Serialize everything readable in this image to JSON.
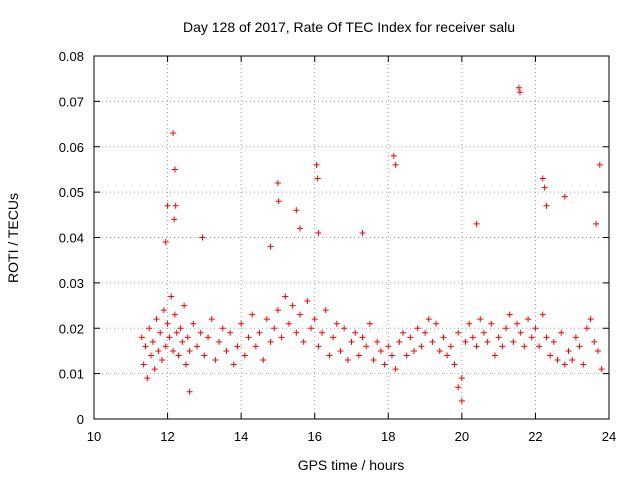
{
  "chart_data": {
    "type": "scatter",
    "title": "Day 128 of 2017, Rate Of TEC Index for receiver salu",
    "xlabel": "GPS time / hours",
    "ylabel": "ROTI / TECUs",
    "xlim": [
      10,
      24
    ],
    "ylim": [
      0,
      0.08
    ],
    "xticks": [
      10,
      12,
      14,
      16,
      18,
      20,
      22,
      24
    ],
    "xtick_labels": [
      "10",
      "12",
      "14",
      "16",
      "18",
      "20",
      "22",
      "24"
    ],
    "yticks": [
      0,
      0.01,
      0.02,
      0.03,
      0.04,
      0.05,
      0.06,
      0.07,
      0.08
    ],
    "ytick_labels": [
      "0",
      "0.01",
      "0.02",
      "0.03",
      "0.04",
      "0.05",
      "0.06",
      "0.07",
      "0.08"
    ],
    "grid": true,
    "marker": "+",
    "color": "#ff0000",
    "series": [
      {
        "name": "ROTI",
        "x": [
          11.3,
          11.35,
          11.4,
          11.45,
          11.5,
          11.55,
          11.6,
          11.65,
          11.7,
          11.75,
          11.8,
          11.85,
          11.9,
          11.95,
          12.0,
          12.05,
          12.1,
          12.15,
          12.2,
          12.25,
          12.3,
          12.35,
          12.4,
          12.45,
          12.5,
          12.55,
          12.6,
          12.7,
          12.8,
          12.9,
          13.0,
          13.1,
          13.2,
          13.3,
          13.4,
          13.5,
          13.6,
          13.7,
          13.8,
          13.9,
          14.0,
          14.1,
          14.2,
          14.3,
          14.4,
          14.5,
          14.6,
          14.7,
          14.8,
          14.9,
          15.0,
          15.1,
          15.2,
          15.3,
          15.4,
          15.5,
          15.6,
          15.7,
          15.8,
          15.9,
          16.0,
          16.1,
          16.2,
          16.3,
          16.4,
          16.5,
          16.6,
          16.7,
          16.8,
          16.9,
          17.0,
          17.1,
          17.2,
          17.3,
          17.4,
          17.5,
          17.6,
          17.7,
          17.8,
          17.9,
          18.0,
          18.1,
          18.2,
          18.3,
          18.4,
          18.5,
          18.6,
          18.7,
          18.8,
          18.9,
          19.0,
          19.1,
          19.2,
          19.3,
          19.4,
          19.5,
          19.6,
          19.7,
          19.8,
          19.9,
          20.0,
          20.1,
          20.2,
          20.3,
          20.4,
          20.5,
          20.6,
          20.7,
          20.8,
          20.9,
          21.0,
          21.1,
          21.2,
          21.3,
          21.4,
          21.5,
          21.6,
          21.7,
          21.8,
          21.9,
          22.0,
          22.1,
          22.2,
          22.3,
          22.4,
          22.5,
          22.6,
          22.7,
          22.8,
          22.9,
          23.0,
          23.1,
          23.2,
          23.3,
          23.4,
          23.5,
          23.6,
          23.7,
          23.8,
          12.15,
          12.2,
          12.22,
          12.0,
          12.18,
          12.95,
          15.0,
          15.02,
          15.5,
          15.6,
          16.05,
          16.08,
          16.1,
          18.15,
          18.2,
          20.4,
          21.55,
          21.58,
          22.2,
          22.25,
          22.3,
          22.8,
          23.65,
          23.75,
          17.3,
          11.95,
          12.6,
          20.0,
          19.9,
          14.8
        ],
        "y": [
          0.018,
          0.012,
          0.016,
          0.009,
          0.02,
          0.014,
          0.017,
          0.011,
          0.022,
          0.015,
          0.019,
          0.013,
          0.024,
          0.016,
          0.021,
          0.018,
          0.027,
          0.015,
          0.023,
          0.019,
          0.014,
          0.02,
          0.017,
          0.025,
          0.012,
          0.018,
          0.015,
          0.021,
          0.016,
          0.019,
          0.014,
          0.018,
          0.022,
          0.013,
          0.017,
          0.02,
          0.015,
          0.019,
          0.012,
          0.016,
          0.021,
          0.014,
          0.018,
          0.023,
          0.016,
          0.019,
          0.013,
          0.022,
          0.017,
          0.02,
          0.024,
          0.018,
          0.027,
          0.021,
          0.025,
          0.019,
          0.023,
          0.017,
          0.026,
          0.02,
          0.022,
          0.016,
          0.019,
          0.024,
          0.014,
          0.018,
          0.021,
          0.015,
          0.02,
          0.013,
          0.017,
          0.019,
          0.014,
          0.018,
          0.016,
          0.021,
          0.013,
          0.017,
          0.015,
          0.012,
          0.016,
          0.014,
          0.011,
          0.017,
          0.019,
          0.014,
          0.018,
          0.015,
          0.02,
          0.016,
          0.019,
          0.022,
          0.017,
          0.021,
          0.015,
          0.018,
          0.014,
          0.016,
          0.012,
          0.019,
          0.009,
          0.017,
          0.021,
          0.018,
          0.016,
          0.022,
          0.019,
          0.017,
          0.021,
          0.014,
          0.018,
          0.016,
          0.02,
          0.023,
          0.017,
          0.021,
          0.019,
          0.016,
          0.022,
          0.018,
          0.02,
          0.016,
          0.023,
          0.018,
          0.014,
          0.017,
          0.013,
          0.019,
          0.012,
          0.015,
          0.013,
          0.018,
          0.016,
          0.012,
          0.02,
          0.022,
          0.017,
          0.015,
          0.011,
          0.063,
          0.055,
          0.047,
          0.047,
          0.044,
          0.04,
          0.052,
          0.048,
          0.046,
          0.042,
          0.056,
          0.053,
          0.041,
          0.058,
          0.056,
          0.043,
          0.073,
          0.072,
          0.053,
          0.051,
          0.047,
          0.049,
          0.043,
          0.056,
          0.041,
          0.039,
          0.006,
          0.004,
          0.007,
          0.038
        ]
      }
    ]
  }
}
